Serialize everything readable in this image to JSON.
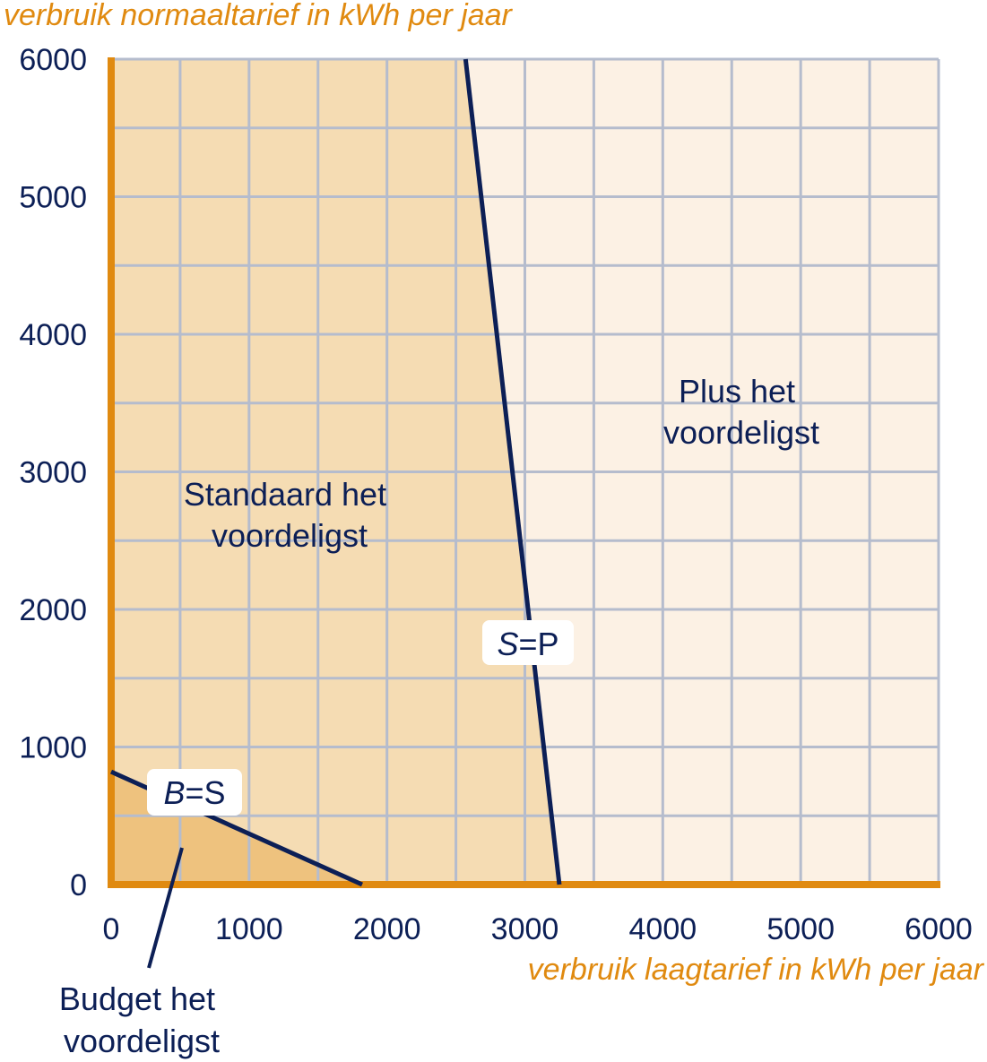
{
  "chart_data": {
    "type": "line",
    "xlabel": "verbruik laagtarief in kWh per jaar",
    "ylabel": "verbruik normaaltarief in kWh per jaar",
    "xlim": [
      0,
      6000
    ],
    "ylim": [
      0,
      6000
    ],
    "x_ticks": [
      "0",
      "1000",
      "2000",
      "3000",
      "4000",
      "5000",
      "6000"
    ],
    "y_ticks": [
      "0",
      "1000",
      "2000",
      "3000",
      "4000",
      "5000",
      "6000"
    ],
    "grid": true,
    "grid_step": 500,
    "series": [
      {
        "name": "B=S",
        "label_italic": "B",
        "label_rest": "=S",
        "color": "#0c1f56",
        "points": [
          [
            0,
            820
          ],
          [
            1820,
            0
          ]
        ]
      },
      {
        "name": "S=P",
        "label_italic": "S",
        "label_rest": "=P",
        "color": "#0c1f56",
        "points": [
          [
            2570,
            6000
          ],
          [
            3250,
            0
          ]
        ]
      }
    ],
    "regions": [
      {
        "lines": [
          "Budget het",
          "voordeligst"
        ],
        "color": "#eec27e"
      },
      {
        "lines": [
          "Standaard het",
          "voordeligst"
        ],
        "color": "#f5dcb3"
      },
      {
        "lines": [
          "Plus het",
          "voordeligst"
        ],
        "color": "#fcf1e4"
      }
    ],
    "colors": {
      "axis": "#e08a10",
      "grid": "#b5bccd",
      "text": "#0c1f56"
    }
  }
}
